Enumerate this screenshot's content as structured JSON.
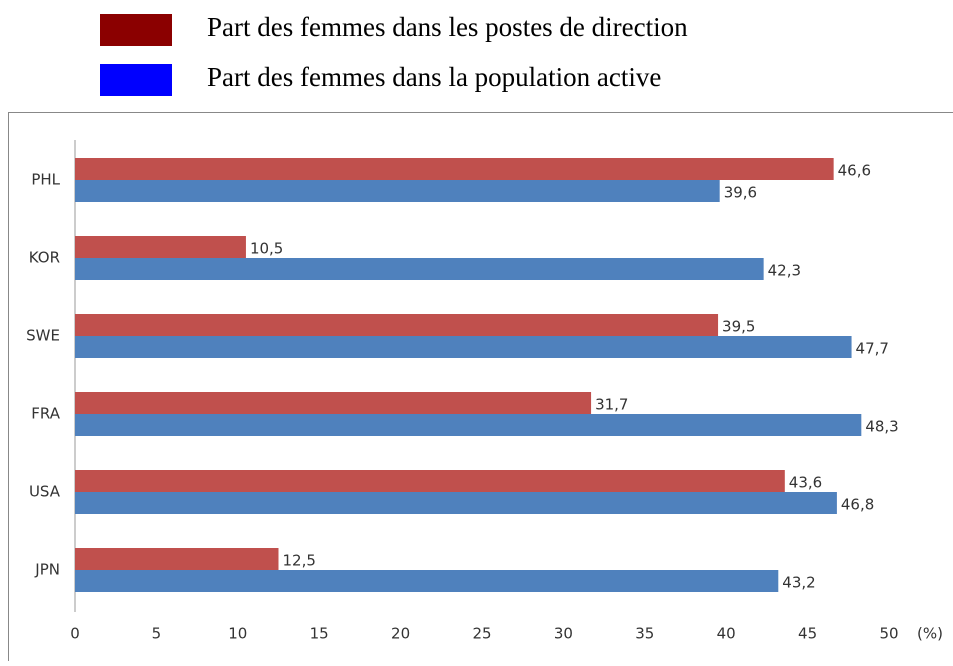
{
  "chart_data": {
    "type": "hbar",
    "categories": [
      "PHL",
      "KOR",
      "SWE",
      "FRA",
      "USA",
      "JPN"
    ],
    "series": [
      {
        "name": "Part des femmes dans les postes de direction",
        "color": "#c0504d",
        "legend_color": "#8b0000",
        "values": [
          46.6,
          10.5,
          39.5,
          31.7,
          43.6,
          12.5
        ],
        "value_labels": [
          "46,6",
          "10,5",
          "39,5",
          "31,7",
          "43,6",
          "12,5"
        ]
      },
      {
        "name": "Part des femmes dans la population active",
        "color": "#4f81bd",
        "legend_color": "#0000ff",
        "values": [
          39.6,
          42.3,
          47.7,
          48.3,
          46.8,
          43.2
        ],
        "value_labels": [
          "39,6",
          "42,3",
          "47,7",
          "48,3",
          "46,8",
          "43,2"
        ]
      }
    ],
    "xlabel": "(%)",
    "xlim": [
      0,
      50
    ],
    "xticks": [
      0,
      5,
      10,
      15,
      20,
      25,
      30,
      35,
      40,
      45,
      50
    ],
    "grid": false
  }
}
